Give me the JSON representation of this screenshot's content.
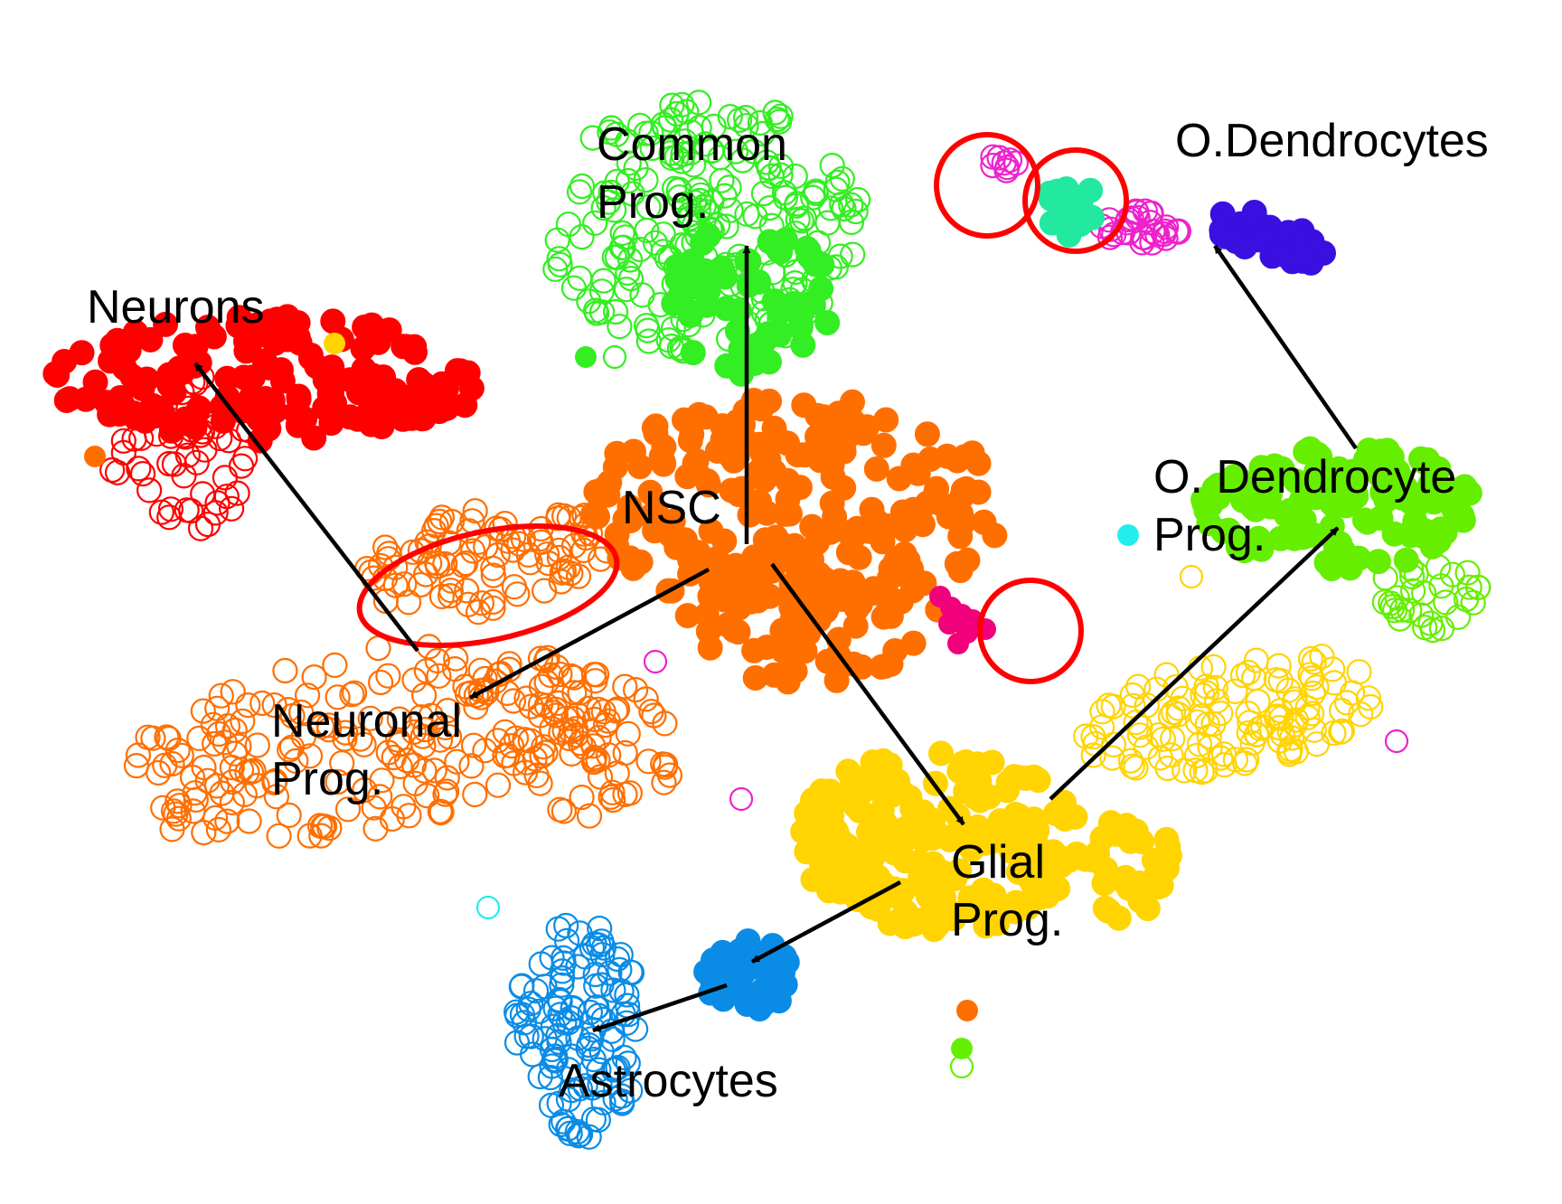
{
  "colors": {
    "orange": "#ff6f00",
    "green": "#33ee22",
    "lime": "#66ee00",
    "red": "#ff0000",
    "yellow": "#ffd400",
    "blue": "#0a8ce6",
    "indigo": "#3a10e0",
    "magenta": "#ee22cc",
    "pink": "#f0007a",
    "teal": "#22e8a0",
    "cyan": "#22eeee",
    "highlight": "#ff0000",
    "arrow": "#000000"
  },
  "clusters": [
    {
      "id": "common-prog",
      "label": [
        "Common",
        "Prog."
      ],
      "color": "green"
    },
    {
      "id": "neurons",
      "label": [
        "Neurons"
      ],
      "color": "red"
    },
    {
      "id": "nsc",
      "label": [
        "NSC"
      ],
      "color": "orange"
    },
    {
      "id": "neuronal-prog",
      "label": [
        "Neuronal",
        "Prog."
      ],
      "color": "orange"
    },
    {
      "id": "o-dendrocytes",
      "label": [
        "O.Dendrocytes"
      ],
      "color": "indigo"
    },
    {
      "id": "o-dendrocyte-prog",
      "label": [
        "O. Dendrocyte",
        "Prog."
      ],
      "color": "lime"
    },
    {
      "id": "glial-prog",
      "label": [
        "Glial",
        "Prog."
      ],
      "color": "yellow"
    },
    {
      "id": "astrocytes",
      "label": [
        "Astrocytes"
      ],
      "color": "blue"
    }
  ],
  "edges": [
    {
      "from": "nsc",
      "to": "common-prog"
    },
    {
      "from": "nsc",
      "to": "neuronal-prog"
    },
    {
      "from": "neuronal-prog",
      "to": "neurons"
    },
    {
      "from": "nsc",
      "to": "glial-prog"
    },
    {
      "from": "glial-prog",
      "to": "o-dendrocyte-prog"
    },
    {
      "from": "o-dendrocyte-prog",
      "to": "o-dendrocytes"
    },
    {
      "from": "glial-prog",
      "to": "astrocytes"
    },
    {
      "from": "astrocytes",
      "to": "astrocytes"
    }
  ]
}
